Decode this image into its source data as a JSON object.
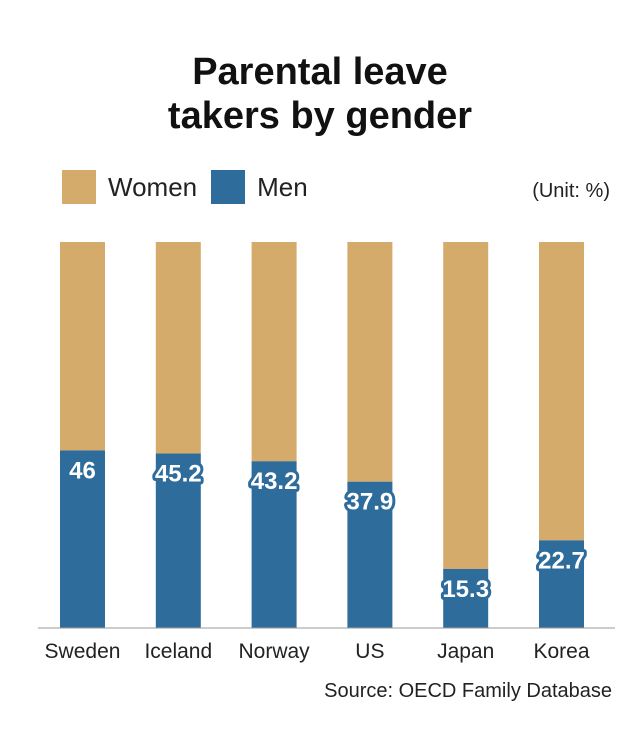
{
  "title_line1": "Parental leave",
  "title_line2": "takers by gender",
  "unit": "(Unit: %)",
  "source": "Source: OECD Family Database",
  "colors": {
    "women": "#d5ab6c",
    "men": "#2e6c9c"
  },
  "chart_data": {
    "type": "bar",
    "stacked": true,
    "categories": [
      "Sweden",
      "Iceland",
      "Norway",
      "US",
      "Japan",
      "Korea"
    ],
    "series": [
      {
        "name": "Men",
        "values": [
          46,
          45.2,
          43.2,
          37.9,
          15.3,
          22.7
        ]
      },
      {
        "name": "Women",
        "values": [
          54,
          54.8,
          56.8,
          62.1,
          84.7,
          77.3
        ]
      }
    ],
    "data_labels": [
      "46",
      "45.2",
      "43.2",
      "37.9",
      "15.3",
      "22.7"
    ],
    "ylim": [
      0,
      100
    ],
    "legend": "top-left",
    "grid": false
  }
}
